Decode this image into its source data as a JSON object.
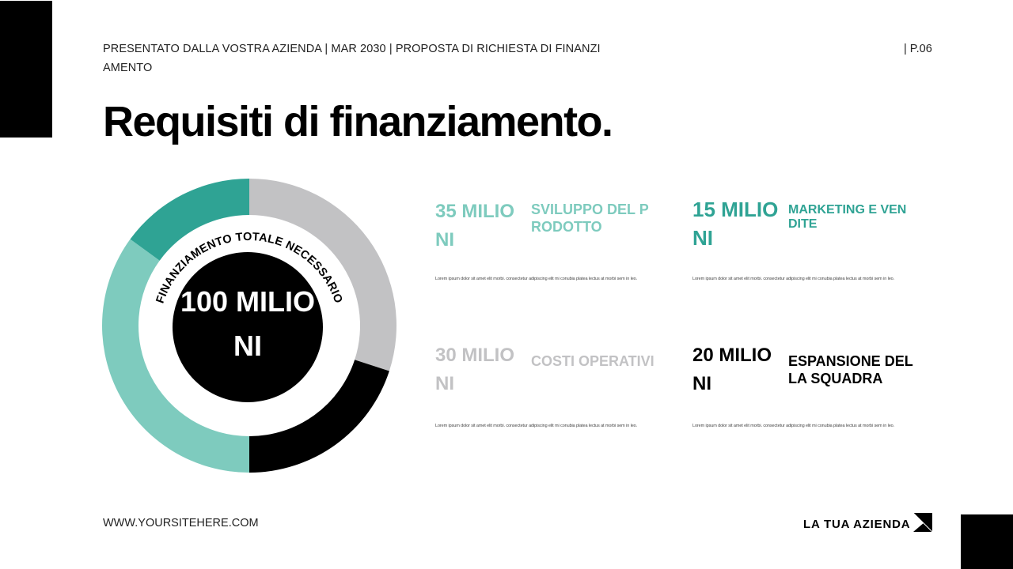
{
  "header": {
    "subtitle": "PRESENTATO DALLA VOSTRA AZIENDA | MAR 2030 | PROPOSTA DI RICHIESTA DI FINANZIAMENTO",
    "page_number": "| P.06"
  },
  "title": "Requisiti di finanziamento.",
  "donut": {
    "arc_label": "FINANZIAMENTO TOTALE NECESSARIO",
    "total": "100 MILIONI"
  },
  "items": [
    {
      "amount": "35 MILIONI",
      "label": "SVILUPPO DEL PRODOTTO",
      "description": "Lorem ipsum dolor sit amet elit morbi. consectetur adipiscing elit mi conubia platea lectus at morbi sem in leo.",
      "color": "#7ecbbe"
    },
    {
      "amount": "15 MILIONI",
      "label": "MARKETING E VENDITE",
      "description": "Lorem ipsum dolor sit amet elit morbi. consectetur adipiscing elit mi conubia platea lectus at morbi sem in leo.",
      "color": "#2fa394"
    },
    {
      "amount": "30 MILIONI",
      "label": "COSTI OPERATIVI",
      "description": "Lorem ipsum dolor sit amet elit morbi. consectetur adipiscing elit mi conubia platea lectus at morbi sem in leo.",
      "color": "#c2c2c4"
    },
    {
      "amount": "20 MILIONI",
      "label": "ESPANSIONE DELLA SQUADRA",
      "description": "Lorem ipsum dolor sit amet elit morbi. consectetur adipiscing elit mi conubia platea lectus at morbi sem in leo.",
      "color": "#000000"
    }
  ],
  "footer": {
    "website": "WWW.YOURSITEHERE.COM",
    "brand": "LA TUA AZIENDA"
  },
  "chart_data": {
    "type": "pie",
    "subtype": "donut",
    "title": "Requisiti di finanziamento.",
    "center_label": "FINANZIAMENTO TOTALE NECESSARIO",
    "center_value": "100 MILIONI",
    "unit": "milioni",
    "categories": [
      "Costi operativi",
      "Espansione della squadra",
      "Sviluppo del prodotto",
      "Marketing e vendite"
    ],
    "values": [
      30,
      20,
      35,
      15
    ],
    "colors": [
      "#c2c2c4",
      "#000000",
      "#7ecbbe",
      "#2fa394"
    ],
    "start_angle": "12 o'clock",
    "direction": "clockwise",
    "legend_position": "right"
  }
}
